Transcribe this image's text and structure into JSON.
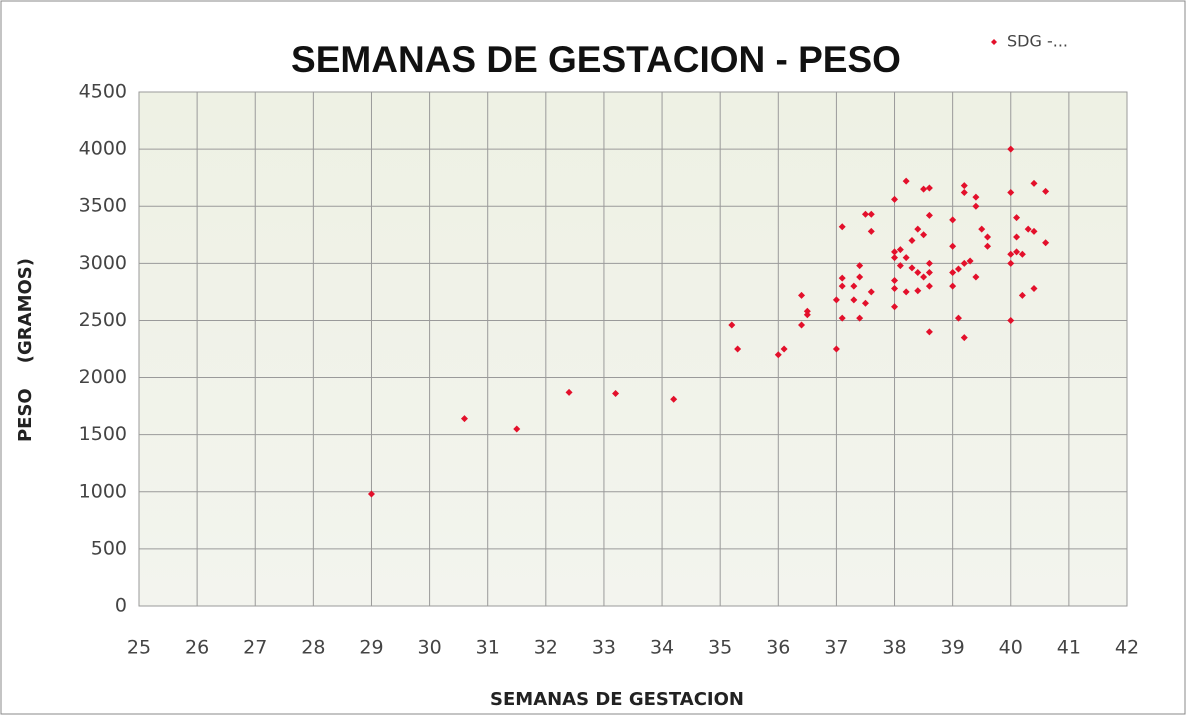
{
  "chart_data": {
    "type": "scatter",
    "title": "SEMANAS DE GESTACION - PESO",
    "xlabel": "SEMANAS DE GESTACION",
    "ylabel": "PESO    (GRAMOS)",
    "x": [
      29,
      30.6,
      31.5,
      32.4,
      33.2,
      34.2,
      35.2,
      35.3,
      36,
      36.1,
      36.4,
      36.4,
      36.5,
      36.5,
      37,
      37,
      37.1,
      37.1,
      37.1,
      37.1,
      37.3,
      37.3,
      37.4,
      37.4,
      37.4,
      37.5,
      37.5,
      37.6,
      37.6,
      37.6,
      38,
      38,
      38,
      38,
      38,
      38,
      38.1,
      38.1,
      38.2,
      38.2,
      38.2,
      38.3,
      38.3,
      38.4,
      38.4,
      38.4,
      38.5,
      38.5,
      38.5,
      38.6,
      38.6,
      38.6,
      38.6,
      38.6,
      38.6,
      39,
      39,
      39,
      39,
      39.1,
      39.1,
      39.2,
      39.2,
      39.2,
      39.2,
      39.3,
      39.4,
      39.4,
      39.4,
      39.5,
      39.6,
      39.6,
      40,
      40,
      40,
      40,
      40,
      40.1,
      40.1,
      40.1,
      40.2,
      40.2,
      40.3,
      40.4,
      40.4,
      40.4,
      40.6,
      40.6
    ],
    "series": [
      {
        "name": "SDG -...",
        "color": "#e3102b",
        "values": [
          980,
          1640,
          1550,
          1870,
          1860,
          1810,
          2460,
          2250,
          2200,
          2250,
          2460,
          2720,
          2580,
          2550,
          2250,
          2680,
          2520,
          2800,
          2870,
          3320,
          2800,
          2680,
          2520,
          2880,
          2980,
          2650,
          3430,
          2750,
          3280,
          3430,
          2620,
          2780,
          2850,
          3050,
          3100,
          3560,
          2980,
          3120,
          2750,
          3720,
          3050,
          2960,
          3200,
          2760,
          2920,
          3300,
          3250,
          3650,
          2880,
          2400,
          2800,
          2920,
          3000,
          3420,
          3660,
          2800,
          2920,
          3150,
          3380,
          2520,
          2950,
          2350,
          3000,
          3620,
          3680,
          3020,
          2880,
          3500,
          3580,
          3300,
          3150,
          3230,
          2500,
          3000,
          3080,
          3620,
          4000,
          3100,
          3230,
          3400,
          2720,
          3080,
          3300,
          2780,
          3280,
          3700,
          3180,
          3630
        ]
      }
    ],
    "xlim": [
      25,
      42
    ],
    "xticks": [
      25,
      26,
      27,
      28,
      29,
      30,
      31,
      32,
      33,
      34,
      35,
      36,
      37,
      38,
      39,
      40,
      41,
      42
    ],
    "ylim": [
      0,
      4500
    ],
    "yticks": [
      0,
      500,
      1000,
      1500,
      2000,
      2500,
      3000,
      3500,
      4000,
      4500
    ],
    "grid": true,
    "legend": "top-right"
  }
}
